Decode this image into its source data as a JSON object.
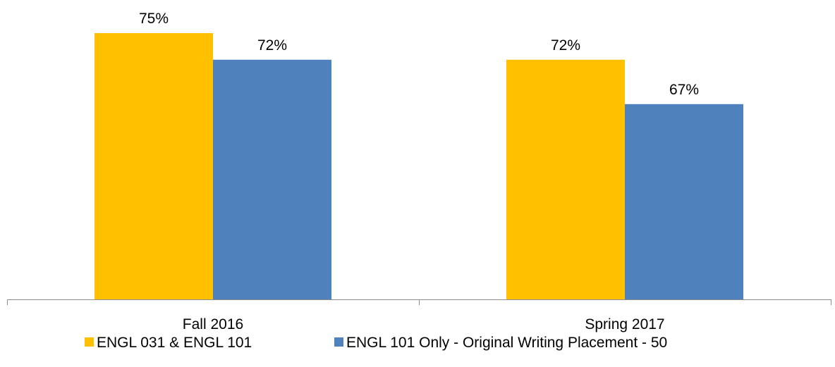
{
  "chart_data": {
    "type": "bar",
    "categories": [
      "Fall 2016",
      "Spring 2017"
    ],
    "series": [
      {
        "name": "ENGL 031 & ENGL 101",
        "values": [
          75,
          72
        ],
        "labels": [
          "75%",
          "72%"
        ],
        "color": "#FFC000"
      },
      {
        "name": "ENGL 101 Only - Original Writing Placement - 50",
        "values": [
          72,
          67
        ],
        "labels": [
          "72%",
          "67%"
        ],
        "color": "#4F81BD"
      }
    ],
    "y_unit": "%",
    "ylim": [
      45,
      75
    ],
    "grid": false,
    "legend": "bottom"
  }
}
